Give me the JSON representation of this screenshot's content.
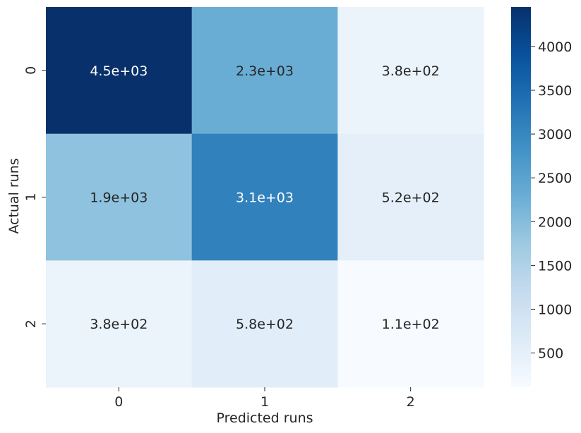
{
  "chart_data": {
    "type": "heatmap",
    "title": "",
    "xlabel": "Predicted runs",
    "ylabel": "Actual runs",
    "x_categories": [
      "0",
      "1",
      "2"
    ],
    "y_categories": [
      "0",
      "1",
      "2"
    ],
    "values": [
      [
        4450,
        2300,
        380
      ],
      [
        1900,
        3100,
        520
      ],
      [
        380,
        580,
        110
      ]
    ],
    "annotations": [
      [
        "4.5e+03",
        "2.3e+03",
        "3.8e+02"
      ],
      [
        "1.9e+03",
        "3.1e+03",
        "5.2e+02"
      ],
      [
        "3.8e+02",
        "5.8e+02",
        "1.1e+02"
      ]
    ],
    "colormap": "Blues",
    "colorbar": {
      "vmin": 110,
      "vmax": 4450,
      "ticks": [
        500,
        1000,
        1500,
        2000,
        2500,
        3000,
        3500,
        4000
      ],
      "tick_labels": [
        "500",
        "1000",
        "1500",
        "2000",
        "2500",
        "3000",
        "3500",
        "4000"
      ]
    },
    "colors": {
      "text_dark": "#262626",
      "text_light": "#ffffff"
    }
  }
}
